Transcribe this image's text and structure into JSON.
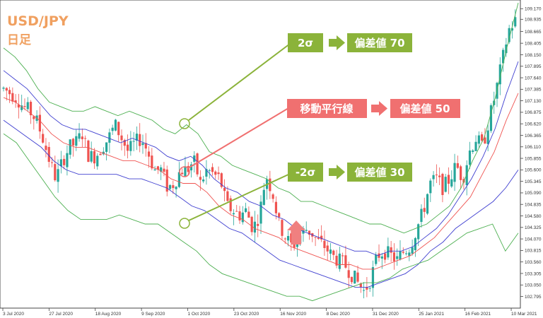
{
  "colors": {
    "bull": "#26a69a",
    "bear": "#ef5350",
    "ma": "#ef5350",
    "sigma1": "#3f3fd0",
    "sigma2": "#4caf50",
    "green_box": "#8bb33a",
    "red_box": "#f07070",
    "title": "#f0a060"
  },
  "header": {
    "title": "USD/JPY",
    "subtitle": "日足"
  },
  "annotations": {
    "plus2": {
      "left": "2σ",
      "right": "偏差値 70"
    },
    "ma": {
      "left": "移動平行線",
      "right": "偏差値 50"
    },
    "minus2": {
      "left": "-2σ",
      "right": "偏差値 30"
    }
  },
  "chart_data": {
    "type": "candlestick",
    "title": "USD/JPY",
    "subtitle": "日足",
    "ylim": [
      102.6,
      109.3
    ],
    "y_ticks": [
      "109.170",
      "108.935",
      "108.665",
      "108.405",
      "108.150",
      "107.895",
      "107.640",
      "107.385",
      "107.130",
      "106.875",
      "106.620",
      "106.365",
      "106.110",
      "105.855",
      "105.600",
      "105.345",
      "105.090",
      "104.835",
      "104.580",
      "104.325",
      "104.070",
      "103.815",
      "103.560",
      "103.305",
      "103.050",
      "102.795"
    ],
    "x_ticks": [
      "3 Jul 2020",
      "27 Jul 2020",
      "18 Aug 2020",
      "9 Sep 2020",
      "1 Oct 2020",
      "23 Oct 2020",
      "16 Nov 2020",
      "8 Dec 2020",
      "31 Dec 2020",
      "25 Jan 2021",
      "16 Feb 2021",
      "10 Mar 2021"
    ],
    "close_path": [
      107.4,
      107.3,
      107.2,
      107.0,
      106.9,
      106.7,
      106.3,
      105.8,
      105.4,
      105.8,
      106.1,
      106.2,
      106.4,
      105.9,
      105.9,
      106.1,
      106.3,
      106.6,
      106.3,
      106.0,
      106.2,
      106.3,
      106.0,
      105.6,
      105.6,
      105.2,
      105.3,
      105.6,
      105.6,
      105.8,
      105.3,
      105.6,
      105.5,
      105.4,
      104.8,
      104.7,
      104.6,
      104.7,
      104.3,
      104.6,
      105.5,
      105.1,
      104.4,
      104.1,
      103.9,
      104.1,
      104.3,
      104.2,
      104.0,
      103.9,
      103.7,
      103.6,
      103.5,
      103.3,
      103.1,
      102.9,
      103.2,
      103.7,
      103.8,
      103.7,
      103.6,
      103.8,
      103.9,
      104.3,
      104.7,
      105.3,
      105.4,
      105.2,
      105.4,
      105.7,
      105.4,
      106.0,
      106.3,
      106.1,
      106.7,
      107.3,
      108.0,
      108.7,
      108.9
    ],
    "bands": {
      "upper_2sigma": [
        108.3,
        108.1,
        107.8,
        107.4,
        107.1,
        107.0,
        106.9,
        106.9,
        107.0,
        106.9,
        106.8,
        106.9,
        106.8,
        106.7,
        106.5,
        106.4,
        106.6,
        106.4,
        106.0,
        105.9,
        105.7,
        105.6,
        105.5,
        105.4,
        105.2,
        105.1,
        104.9,
        104.9,
        104.8,
        104.7,
        104.6,
        104.5,
        104.4,
        104.4,
        104.3,
        104.2,
        104.3,
        104.4,
        104.6,
        104.8,
        105.2,
        105.8,
        106.3,
        107.2,
        108.3,
        109.3
      ],
      "upper_1sigma": [
        107.8,
        107.6,
        107.4,
        107.1,
        106.8,
        106.6,
        106.5,
        106.5,
        106.4,
        106.3,
        106.2,
        106.3,
        106.2,
        106.1,
        105.9,
        105.8,
        105.9,
        105.7,
        105.4,
        105.2,
        105.1,
        104.9,
        104.8,
        104.6,
        104.5,
        104.3,
        104.2,
        104.1,
        104.0,
        103.9,
        103.8,
        103.8,
        103.7,
        103.8,
        103.8,
        103.9,
        104.1,
        104.3,
        104.6,
        105.0,
        105.4,
        105.9,
        106.5,
        107.3,
        108.0
      ],
      "moving_average": [
        107.2,
        107.1,
        106.9,
        106.7,
        106.4,
        106.2,
        106.1,
        106.1,
        106.0,
        105.9,
        105.8,
        105.8,
        105.7,
        105.6,
        105.4,
        105.3,
        105.3,
        105.1,
        104.8,
        104.6,
        104.5,
        104.3,
        104.2,
        104.1,
        103.9,
        103.8,
        103.7,
        103.6,
        103.5,
        103.5,
        103.4,
        103.4,
        103.5,
        103.6,
        103.7,
        103.9,
        104.1,
        104.4,
        104.7,
        105.0,
        105.5,
        106.0,
        106.7,
        107.3
      ],
      "lower_1sigma": [
        106.7,
        106.5,
        106.3,
        106.1,
        105.8,
        105.6,
        105.5,
        105.5,
        105.5,
        105.5,
        105.4,
        105.4,
        105.3,
        105.2,
        105.0,
        104.8,
        104.7,
        104.5,
        104.3,
        104.2,
        104.0,
        103.8,
        103.6,
        103.5,
        103.4,
        103.3,
        103.2,
        103.1,
        103.0,
        103.0,
        103.1,
        103.2,
        103.3,
        103.5,
        103.8,
        104.0,
        104.3,
        104.5,
        104.7,
        104.9,
        105.2,
        105.6
      ],
      "lower_2sigma": [
        106.4,
        106.2,
        105.8,
        105.4,
        105.0,
        104.7,
        104.5,
        104.5,
        104.5,
        104.6,
        104.5,
        104.4,
        104.4,
        104.2,
        104.0,
        103.8,
        103.5,
        103.3,
        103.2,
        103.1,
        103.0,
        102.9,
        102.8,
        102.8,
        102.7,
        102.8,
        102.9,
        103.0,
        103.1,
        103.1,
        103.2,
        103.4,
        103.5,
        103.6,
        103.8,
        104.0,
        104.2,
        104.3,
        104.4,
        103.8,
        104.2
      ]
    }
  }
}
